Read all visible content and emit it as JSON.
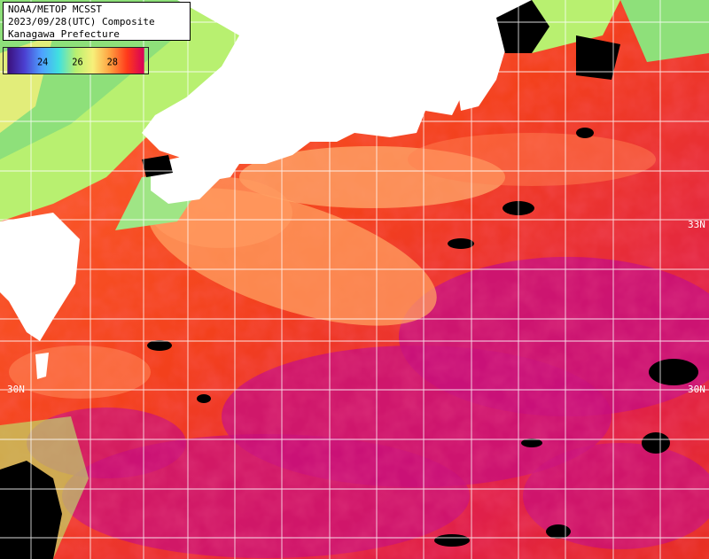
{
  "header": {
    "line1": "NOAA/METOP MCSST",
    "line2": "2023/09/28(UTC) Composite",
    "line3": "Kanagawa Prefecture"
  },
  "legend": {
    "labels": [
      "24",
      "26",
      "28"
    ],
    "colors": [
      "#3a0f7a",
      "#4b3fd0",
      "#4ea0ff",
      "#40e0e0",
      "#b8f070",
      "#f7f07a",
      "#ffa040",
      "#ff3a1a",
      "#d8005a"
    ]
  },
  "grid": {
    "labels": [
      {
        "text": "33N"
      },
      {
        "text": "30N"
      },
      {
        "text": "30N"
      }
    ]
  },
  "colors": {
    "land": "#ffffff",
    "cloud": "#000000",
    "grid": "#ffffff",
    "warm": "#f03a1a",
    "hot": "#c8107a",
    "cool": "#ffa060",
    "coastal": "#8ee07a"
  }
}
